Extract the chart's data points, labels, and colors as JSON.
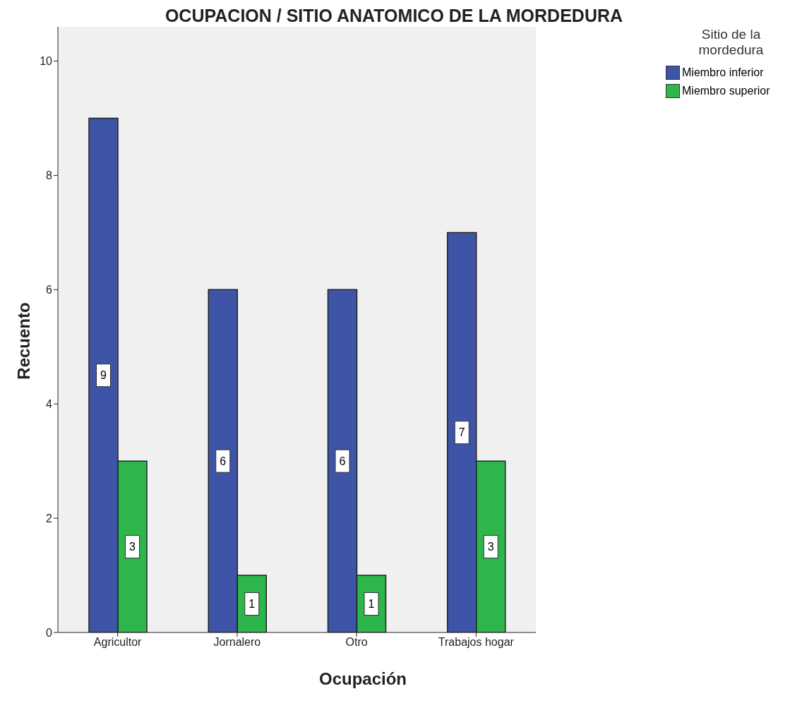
{
  "chart_data": {
    "type": "bar",
    "title": "OCUPACION / SITIO ANATOMICO DE LA MORDEDURA",
    "xlabel": "Ocupación",
    "ylabel": "Recuento",
    "legend_title": "Sitio de la mordedura",
    "categories": [
      "Agricultor",
      "Jornalero",
      "Otro",
      "Trabajos hogar"
    ],
    "series": [
      {
        "name": "Miembro inferior",
        "color": "#3e55a7",
        "values": [
          9,
          6,
          6,
          7
        ]
      },
      {
        "name": "Miembro superior",
        "color": "#2db64b",
        "values": [
          3,
          1,
          1,
          3
        ]
      }
    ],
    "ylim": [
      0,
      10.6
    ],
    "yticks": [
      0,
      2,
      4,
      6,
      8,
      10
    ],
    "grid": false,
    "legend": "top right",
    "data_labels": true
  }
}
